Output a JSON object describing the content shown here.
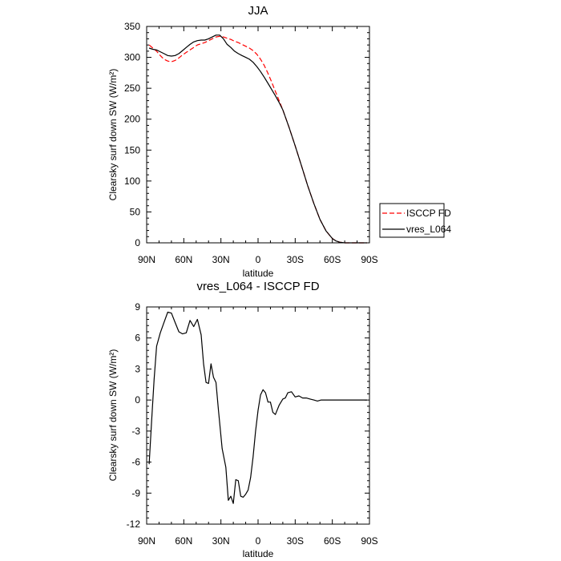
{
  "chart_data": [
    {
      "type": "line",
      "title": "JJA",
      "xlabel": "latitude",
      "ylabel": "Clearsky surf down SW (W/m²)",
      "xlim": [
        90,
        -90
      ],
      "ylim": [
        0,
        350
      ],
      "xticks": [
        {
          "value": 90,
          "label": "90N"
        },
        {
          "value": 60,
          "label": "60N"
        },
        {
          "value": 30,
          "label": "30N"
        },
        {
          "value": 0,
          "label": "0"
        },
        {
          "value": -30,
          "label": "30S"
        },
        {
          "value": -60,
          "label": "60S"
        },
        {
          "value": -90,
          "label": "90S"
        }
      ],
      "yticks": [
        0,
        50,
        100,
        150,
        200,
        250,
        300,
        350
      ],
      "legend_position": "right-bottom, outside plot",
      "series": [
        {
          "name": "ISCCP FD",
          "color": "#ff0000",
          "dash": "dashed",
          "x": [
            88,
            85,
            82,
            79,
            76,
            73,
            70,
            67,
            64,
            61,
            58,
            55,
            52,
            49,
            46,
            43,
            40,
            37,
            34,
            31,
            28,
            25,
            22,
            19,
            16,
            13,
            10,
            7,
            4,
            1,
            -2,
            -5,
            -8,
            -11,
            -14,
            -17,
            -20,
            -25,
            -30,
            -35,
            -40,
            -45,
            -50,
            -55,
            -60,
            -63,
            -66,
            -70,
            -75,
            -80,
            -85,
            -88
          ],
          "y": [
            320,
            315,
            310,
            303,
            297,
            294,
            293,
            295,
            299,
            304,
            308,
            312,
            316,
            320,
            322,
            324,
            327,
            330,
            333,
            334,
            333,
            331,
            329,
            326,
            324,
            321,
            318,
            315,
            311,
            305,
            297,
            287,
            274,
            260,
            245,
            230,
            215,
            187,
            157,
            125,
            93,
            64,
            38,
            19,
            7,
            3,
            1,
            0,
            0,
            0,
            0,
            0
          ]
        },
        {
          "name": "vres_L064",
          "color": "#000000",
          "dash": "solid",
          "x": [
            88,
            85,
            82,
            79,
            76,
            73,
            70,
            67,
            64,
            61,
            58,
            55,
            52,
            49,
            46,
            43,
            40,
            37,
            34,
            31,
            28,
            25,
            22,
            19,
            16,
            13,
            10,
            7,
            4,
            1,
            -2,
            -5,
            -8,
            -11,
            -14,
            -17,
            -20,
            -25,
            -30,
            -35,
            -40,
            -45,
            -50,
            -55,
            -60,
            -63,
            -66,
            -70,
            -75,
            -80,
            -85,
            -88
          ],
          "y": [
            315,
            313,
            312,
            309,
            306,
            303,
            302,
            303,
            306,
            311,
            316,
            321,
            325,
            327,
            328,
            328,
            330,
            333,
            336,
            336,
            330,
            321,
            316,
            310,
            306,
            303,
            300,
            297,
            292,
            285,
            277,
            268,
            258,
            248,
            238,
            227,
            215,
            187,
            157,
            125,
            93,
            64,
            38,
            19,
            7,
            3,
            1,
            0,
            0,
            0,
            0,
            0
          ]
        }
      ]
    },
    {
      "type": "line",
      "title": "vres_L064 - ISCCP FD",
      "xlabel": "latitude",
      "ylabel": "Clearsky surf down SW (W/m²)",
      "xlim": [
        90,
        -90
      ],
      "ylim": [
        -12,
        9
      ],
      "xticks": [
        {
          "value": 90,
          "label": "90N"
        },
        {
          "value": 60,
          "label": "60N"
        },
        {
          "value": 30,
          "label": "30N"
        },
        {
          "value": 0,
          "label": "0"
        },
        {
          "value": -30,
          "label": "30S"
        },
        {
          "value": -60,
          "label": "60S"
        },
        {
          "value": -90,
          "label": "90S"
        }
      ],
      "yticks": [
        -12,
        -9,
        -6,
        -3,
        0,
        3,
        6,
        9
      ],
      "series": [
        {
          "color": "#000000",
          "dash": "solid",
          "x": [
            88,
            86,
            84,
            82,
            79,
            76,
            73,
            70,
            67,
            64,
            61,
            58,
            55,
            52,
            49,
            46,
            44,
            42,
            40,
            38,
            36,
            34,
            32,
            29,
            26,
            24,
            22,
            20,
            18,
            16,
            14,
            12,
            10,
            8,
            6,
            4,
            2,
            0,
            -2,
            -4,
            -6,
            -8,
            -10,
            -12,
            -14,
            -17,
            -20,
            -22,
            -24,
            -27,
            -30,
            -33,
            -36,
            -39,
            -42,
            -45,
            -48,
            -51,
            -54,
            -57,
            -60,
            -63,
            -66,
            -70,
            -75,
            -80,
            -85,
            -88
          ],
          "y": [
            -6.2,
            -2,
            2,
            5.2,
            6.5,
            7.5,
            8.5,
            8.4,
            7.5,
            6.6,
            6.4,
            6.5,
            7.7,
            7.1,
            7.8,
            6.3,
            3.5,
            1.7,
            1.6,
            3.5,
            2.2,
            1.7,
            -1,
            -4.7,
            -6.5,
            -9.7,
            -9.3,
            -10,
            -7.7,
            -7.8,
            -9.3,
            -9.4,
            -9.1,
            -8.7,
            -7.5,
            -5.5,
            -3,
            -1,
            0.5,
            1,
            0.7,
            -0.2,
            -0.2,
            -1.2,
            -1.4,
            -0.5,
            0.1,
            0.2,
            0.7,
            0.8,
            0.3,
            0.4,
            0.2,
            0.2,
            0.1,
            0.0,
            -0.1,
            0.0,
            0.0,
            0.0,
            0.0,
            0.0,
            0.0,
            0.0,
            0.0,
            0.0,
            0.0,
            0.0
          ]
        }
      ]
    }
  ]
}
